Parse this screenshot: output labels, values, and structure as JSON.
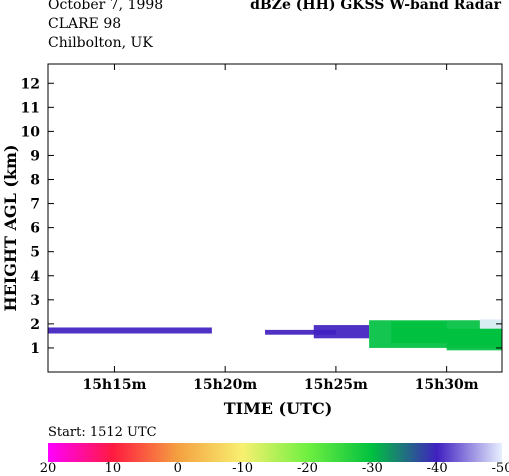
{
  "header": {
    "date": "October  7, 1998",
    "campaign": "CLARE 98",
    "site": "Chilbolton, UK",
    "title": "dBZe (HH)   GKSS  W-band Radar"
  },
  "start_label": "Start: 1512 UTC",
  "colorbar": {
    "ticks": [
      "20",
      "10",
      "0",
      "-10",
      "-20",
      "-30",
      "-40",
      "-50"
    ],
    "colors": [
      "#ff00ff",
      "#ff1a40",
      "#f4a040",
      "#f8f070",
      "#70f040",
      "#00c040",
      "#4020c0",
      "#e8f0ff"
    ]
  },
  "chart_data": {
    "type": "heatmap",
    "title": "dBZe (HH)   GKSS  W-band Radar",
    "xlabel": "TIME (UTC)",
    "ylabel": "HEIGHT AGL (km)",
    "x_ticks": [
      "15h15m",
      "15h20m",
      "15h25m",
      "15h30m"
    ],
    "x_tick_minutes": [
      3,
      8,
      13,
      18
    ],
    "xlim_minutes_after_start": [
      0,
      20.5
    ],
    "y_ticks": [
      1,
      2,
      3,
      4,
      5,
      6,
      7,
      8,
      9,
      10,
      11,
      12
    ],
    "ylim": [
      0,
      12.8
    ],
    "value_unit": "dBZe",
    "colorscale": [
      20,
      -50
    ],
    "echoes": [
      {
        "t_start": 0,
        "t_end": 7.4,
        "h_bottom": 1.6,
        "h_top": 1.85,
        "dbz": -42
      },
      {
        "t_start": 9.8,
        "t_end": 13,
        "h_bottom": 1.55,
        "h_top": 1.75,
        "dbz": -43
      },
      {
        "t_start": 12,
        "t_end": 14.5,
        "h_bottom": 1.4,
        "h_top": 1.95,
        "dbz": -40
      },
      {
        "t_start": 14.5,
        "t_end": 20.5,
        "h_bottom": 1.0,
        "h_top": 2.15,
        "dbz": -32
      },
      {
        "t_start": 15.5,
        "t_end": 18,
        "h_bottom": 1.2,
        "h_top": 2.1,
        "dbz": -25
      },
      {
        "t_start": 18,
        "t_end": 20.5,
        "h_bottom": 0.9,
        "h_top": 1.8,
        "dbz": -27
      },
      {
        "t_start": 19.5,
        "t_end": 20.5,
        "h_bottom": 1.8,
        "h_top": 2.2,
        "dbz": -48
      }
    ]
  }
}
